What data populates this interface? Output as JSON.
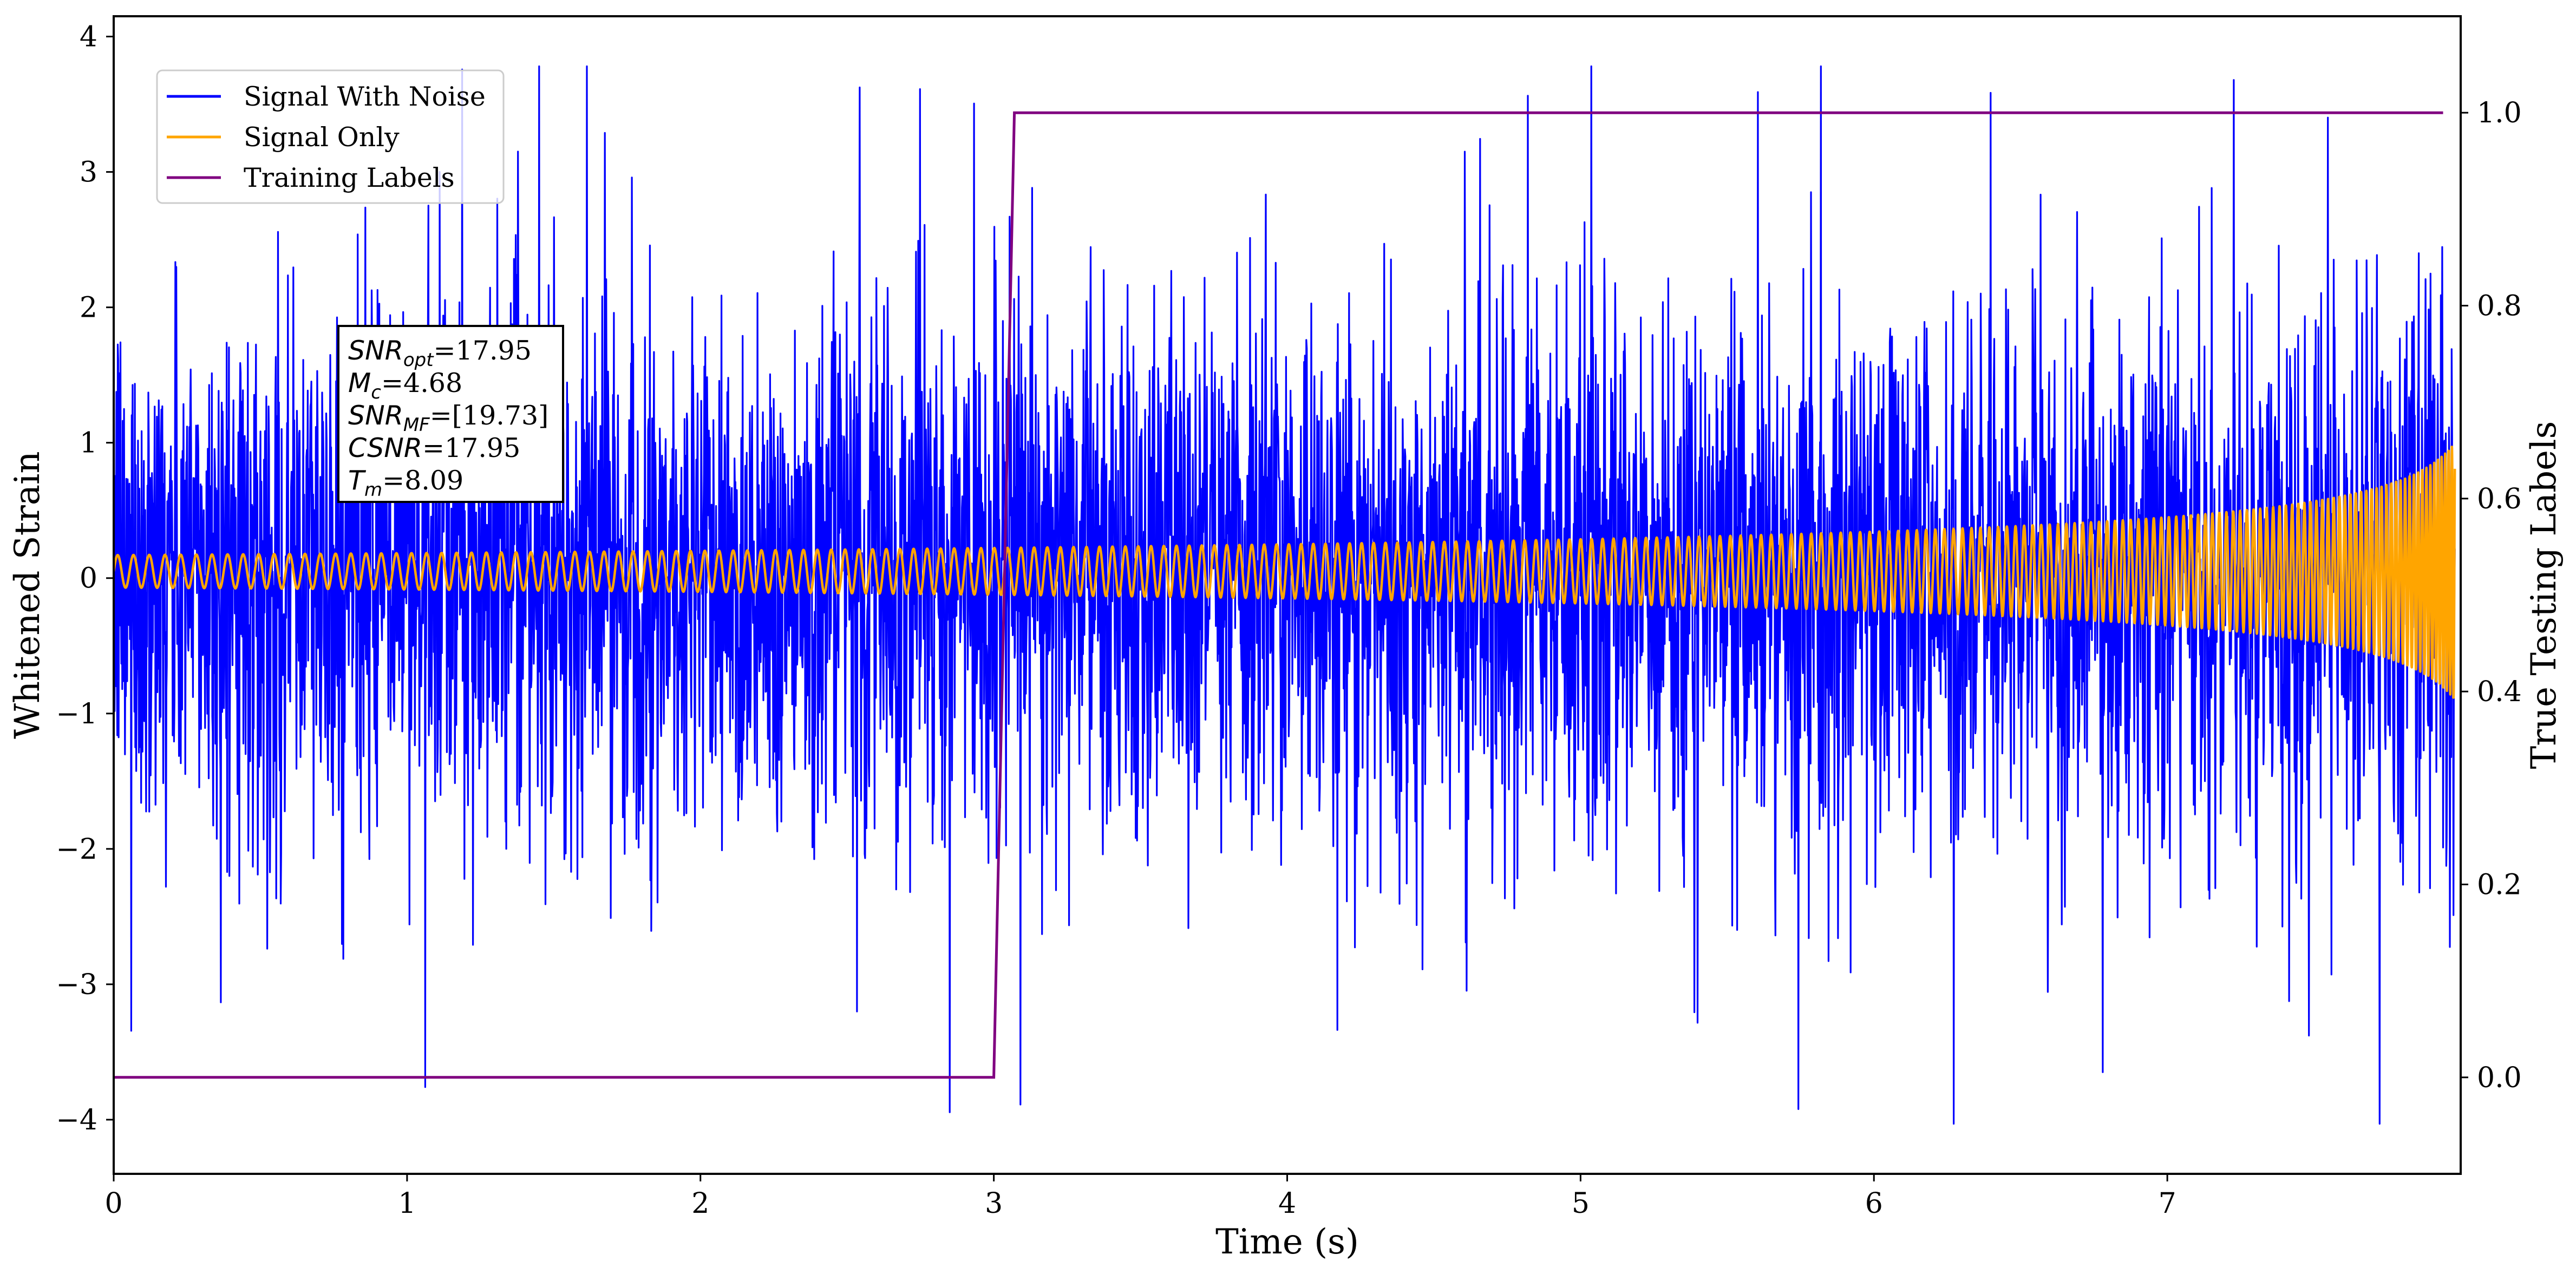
{
  "chart_data": {
    "type": "line",
    "xlabel": "Time (s)",
    "ylabel": "Whitened Strain",
    "y2label": "True Testing Labels",
    "xlim": [
      0,
      8.0
    ],
    "ylim": [
      -4.4,
      4.15
    ],
    "y2lim": [
      -0.1,
      1.1
    ],
    "x_ticks": [
      0,
      1,
      2,
      3,
      4,
      5,
      6,
      7
    ],
    "x_tick_labels": [
      "0",
      "1",
      "2",
      "3",
      "4",
      "5",
      "6",
      "7"
    ],
    "y_ticks": [
      -4,
      -3,
      -2,
      -1,
      0,
      1,
      2,
      3,
      4
    ],
    "y_tick_labels": [
      "−4",
      "−3",
      "−2",
      "−1",
      "0",
      "1",
      "2",
      "3",
      "4"
    ],
    "y2_ticks": [
      0.0,
      0.2,
      0.4,
      0.6,
      0.8,
      1.0
    ],
    "y2_tick_labels": [
      "0.0",
      "0.2",
      "0.4",
      "0.6",
      "0.8",
      "1.0"
    ],
    "grid": false,
    "legend_position": "top-left",
    "series": [
      {
        "name": "Signal With Noise",
        "color": "#0000ff",
        "axis": "left",
        "description_values": {
          "x_range": [
            0,
            7.98
          ],
          "noise_std": 1.0,
          "peak_max": 3.78,
          "peak_min": -4.03
        }
      },
      {
        "name": "Signal Only",
        "color": "#ffa500",
        "axis": "left",
        "description_values": {
          "x_range": [
            0,
            7.98
          ],
          "amplitude_start": 0.12,
          "amplitude_end": 0.95,
          "offset": 0.05
        }
      },
      {
        "name": "Training Labels",
        "color": "#800080",
        "axis": "right",
        "x": [
          0.0,
          3.0,
          3.07,
          7.94
        ],
        "y": [
          0.0,
          0.0,
          1.0,
          1.0
        ]
      }
    ],
    "annotation": {
      "lines": [
        {
          "symbol": "SNR",
          "sub": "opt",
          "value": "=17.95"
        },
        {
          "symbol": "M",
          "sub": "c",
          "value": "=4.68"
        },
        {
          "symbol": "SNR",
          "sub": "MF",
          "value": "=[19.73]"
        },
        {
          "symbol": "CSNR",
          "sub": "",
          "value": "=17.95"
        },
        {
          "symbol": "T",
          "sub": "m",
          "value": "=8.09"
        }
      ]
    }
  }
}
